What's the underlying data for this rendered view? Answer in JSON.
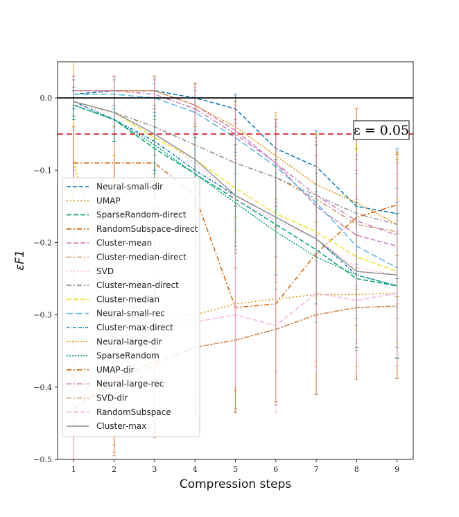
{
  "chart_data": {
    "type": "line",
    "title": "",
    "xlabel": "Compression steps",
    "ylabel": "εF1",
    "x": [
      1,
      2,
      3,
      4,
      5,
      6,
      7,
      8,
      9
    ],
    "xlim": [
      0.6,
      9.4
    ],
    "ylim": [
      -0.5,
      0.05
    ],
    "yticks": [
      0.0,
      -0.1,
      -0.2,
      -0.3,
      -0.4,
      -0.5
    ],
    "ytick_labels": [
      "0.0",
      "−0.1",
      "−0.2",
      "−0.3",
      "−0.4",
      "−0.5"
    ],
    "grid": false,
    "legend_position": "lower-left",
    "reference_lines": [
      {
        "y": 0.0,
        "color": "#000000",
        "style": "solid"
      },
      {
        "y": -0.05,
        "color": "#d62728",
        "style": "dashed"
      }
    ],
    "annotation": {
      "text": "ε = 0.05",
      "x": 8.7,
      "y": -0.043
    },
    "series": [
      {
        "name": "Neural-small-dir",
        "color": "#0173b2",
        "dash": "6,3",
        "values": [
          0.005,
          0.01,
          0.01,
          0.0,
          -0.015,
          -0.07,
          -0.095,
          -0.15,
          -0.16
        ],
        "err": [
          0.02,
          0.02,
          0.02,
          0.02,
          0.02,
          0.04,
          0.05,
          0.08,
          0.09
        ]
      },
      {
        "name": "UMAP",
        "color": "#de8f05",
        "dash": "2,3",
        "values": [
          -0.09,
          -0.28,
          -0.3,
          -0.3,
          -0.285,
          -0.278,
          -0.272,
          -0.272,
          -0.27
        ],
        "err": [
          0.3,
          0.2,
          0.15,
          0.14,
          0.12,
          0.1,
          0.1,
          0.1,
          0.1
        ]
      },
      {
        "name": "SparseRandom-direct",
        "color": "#029e73",
        "dash": "7,3",
        "values": [
          -0.01,
          -0.03,
          -0.07,
          -0.105,
          -0.14,
          -0.175,
          -0.21,
          -0.25,
          -0.26
        ],
        "err": [
          0.02,
          0.03,
          0.04,
          0.05,
          0.07,
          0.08,
          0.09,
          0.1,
          0.1
        ]
      },
      {
        "name": "RandomSubspace-direct",
        "color": "#d55e00",
        "dash": "7,3,2,3",
        "values": [
          -0.09,
          -0.09,
          -0.09,
          -0.135,
          -0.29,
          -0.285,
          -0.215,
          -0.165,
          -0.148
        ],
        "err": [
          0.05,
          0.05,
          0.05,
          0.07,
          0.14,
          0.14,
          0.15,
          0.15,
          0.07
        ]
      },
      {
        "name": "Cluster-mean",
        "color": "#cc78bc",
        "dash": "7,3",
        "values": [
          0.01,
          0.01,
          0.01,
          -0.01,
          -0.045,
          -0.09,
          -0.15,
          -0.19,
          -0.205
        ],
        "err": [
          0.02,
          0.02,
          0.02,
          0.03,
          0.04,
          0.06,
          0.07,
          0.09,
          0.1
        ]
      },
      {
        "name": "Cluster-median-direct",
        "color": "#ca9161",
        "dash": "7,3,2,3",
        "values": [
          -0.005,
          -0.02,
          -0.04,
          -0.065,
          -0.09,
          -0.11,
          -0.14,
          -0.175,
          -0.185
        ],
        "err": [
          0.02,
          0.03,
          0.04,
          0.05,
          0.06,
          0.07,
          0.08,
          0.09,
          0.1
        ]
      },
      {
        "name": "SVD",
        "color": "#fbafe4",
        "dash": "2,3",
        "values": [
          -0.01,
          -0.02,
          -0.05,
          -0.09,
          -0.14,
          -0.17,
          -0.195,
          -0.235,
          -0.245
        ],
        "err": [
          0.02,
          0.03,
          0.04,
          0.05,
          0.07,
          0.08,
          0.09,
          0.1,
          0.1
        ]
      },
      {
        "name": "Cluster-mean-direct",
        "color": "#949494",
        "dash": "7,3,2,3",
        "values": [
          -0.005,
          -0.02,
          -0.04,
          -0.065,
          -0.09,
          -0.11,
          -0.135,
          -0.16,
          -0.175
        ],
        "err": [
          0.02,
          0.03,
          0.04,
          0.05,
          0.06,
          0.07,
          0.08,
          0.09,
          0.1
        ]
      },
      {
        "name": "Cluster-median",
        "color": "#ece133",
        "dash": "7,3",
        "values": [
          -0.005,
          -0.02,
          -0.055,
          -0.085,
          -0.125,
          -0.16,
          -0.185,
          -0.22,
          -0.24
        ],
        "err": [
          0.02,
          0.03,
          0.04,
          0.05,
          0.06,
          0.08,
          0.09,
          0.1,
          0.1
        ]
      },
      {
        "name": "Neural-small-rec",
        "color": "#56b4e9",
        "dash": "9,4",
        "values": [
          0.005,
          0.005,
          0.0,
          -0.02,
          -0.055,
          -0.095,
          -0.145,
          -0.205,
          -0.235
        ],
        "err": [
          0.02,
          0.02,
          0.02,
          0.03,
          0.05,
          0.06,
          0.08,
          0.1,
          0.11
        ]
      },
      {
        "name": "Cluster-max-direct",
        "color": "#0173b2",
        "dash": "4,2,1,2",
        "values": [
          -0.005,
          -0.03,
          -0.06,
          -0.1,
          -0.135,
          -0.165,
          -0.195,
          -0.245,
          -0.26
        ],
        "err": [
          0.02,
          0.03,
          0.04,
          0.05,
          0.07,
          0.08,
          0.09,
          0.1,
          0.1
        ]
      },
      {
        "name": "Neural-large-dir",
        "color": "#de8f05",
        "dash": "2,2",
        "values": [
          0.01,
          0.01,
          0.01,
          -0.01,
          -0.04,
          -0.08,
          -0.12,
          -0.145,
          -0.175
        ],
        "err": [
          0.02,
          0.02,
          0.02,
          0.03,
          0.04,
          0.06,
          0.07,
          0.09,
          0.1
        ]
      },
      {
        "name": "SparseRandom",
        "color": "#029e73",
        "dash": "2,2",
        "values": [
          -0.01,
          -0.03,
          -0.065,
          -0.105,
          -0.145,
          -0.185,
          -0.22,
          -0.245,
          -0.26
        ],
        "err": [
          0.02,
          0.03,
          0.04,
          0.05,
          0.07,
          0.08,
          0.09,
          0.1,
          0.1
        ]
      },
      {
        "name": "UMAP-dir",
        "color": "#d55e00",
        "dash": "7,3,2,3",
        "values": [
          -0.43,
          -0.39,
          -0.365,
          -0.345,
          -0.335,
          -0.32,
          -0.3,
          -0.29,
          -0.288
        ],
        "err": [
          0.2,
          0.1,
          0.1,
          0.09,
          0.1,
          0.1,
          0.11,
          0.1,
          0.1
        ]
      },
      {
        "name": "Neural-large-rec",
        "color": "#cc78bc",
        "dash": "7,3,2,3",
        "values": [
          0.01,
          0.01,
          0.005,
          -0.015,
          -0.05,
          -0.09,
          -0.135,
          -0.17,
          -0.19
        ],
        "err": [
          0.02,
          0.02,
          0.02,
          0.03,
          0.04,
          0.06,
          0.08,
          0.09,
          0.1
        ]
      },
      {
        "name": "SVD-dir",
        "color": "#ca9161",
        "dash": "7,3,2,3",
        "values": [
          -0.43,
          -0.395,
          -0.37,
          -0.345,
          -0.335,
          -0.32,
          -0.3,
          -0.29,
          -0.288
        ],
        "err": [
          0.2,
          0.1,
          0.1,
          0.09,
          0.1,
          0.1,
          0.11,
          0.1,
          0.1
        ]
      },
      {
        "name": "RandomSubspace",
        "color": "#fbafe4",
        "dash": "7,3",
        "values": [
          -0.36,
          -0.33,
          -0.32,
          -0.31,
          -0.3,
          -0.315,
          -0.27,
          -0.28,
          -0.27
        ],
        "err": [
          0.15,
          0.12,
          0.11,
          0.1,
          0.1,
          0.12,
          0.11,
          0.1,
          0.1
        ]
      },
      {
        "name": "Cluster-max",
        "color": "#949494",
        "dash": "",
        "values": [
          -0.005,
          -0.02,
          -0.05,
          -0.085,
          -0.135,
          -0.165,
          -0.195,
          -0.24,
          -0.245
        ],
        "err": [
          0.02,
          0.03,
          0.04,
          0.05,
          0.07,
          0.08,
          0.09,
          0.1,
          0.1
        ]
      }
    ]
  }
}
